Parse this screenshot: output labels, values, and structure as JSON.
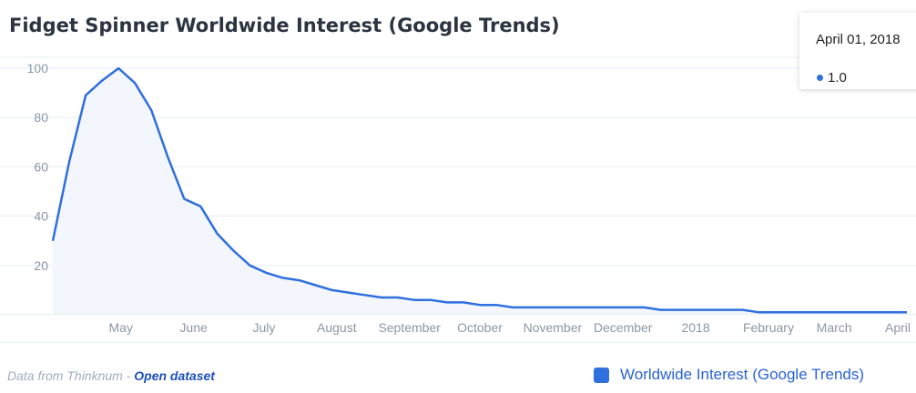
{
  "title": "Fidget Spinner Worldwide Interest (Google Trends)",
  "tooltip": {
    "date": "April 01, 2018",
    "value": "1.0"
  },
  "credit": {
    "prefix": "Data from Thinknum - ",
    "link": "Open dataset"
  },
  "colors": {
    "line": "#2f6fde",
    "area": "#f3f6fc",
    "grid": "#e6edf5"
  },
  "chart_data": {
    "type": "area",
    "title": "Fidget Spinner Worldwide Interest (Google Trends)",
    "xlabel": "",
    "ylabel": "",
    "ylim": [
      0,
      100
    ],
    "y_ticks": [
      20,
      40,
      60,
      80,
      100
    ],
    "x_ticks": [
      "May",
      "June",
      "July",
      "August",
      "September",
      "October",
      "November",
      "December",
      "2018",
      "February",
      "March",
      "April"
    ],
    "x_tick_dates": [
      "2017-05-01",
      "2017-06-01",
      "2017-07-01",
      "2017-08-01",
      "2017-09-01",
      "2017-10-01",
      "2017-11-01",
      "2017-12-01",
      "2018-01-01",
      "2018-02-01",
      "2018-03-01",
      "2018-04-01"
    ],
    "grid": true,
    "legend": "bottom-right",
    "series": [
      {
        "name": "Worldwide Interest (Google Trends)",
        "x": [
          "2017-04-02",
          "2017-04-09",
          "2017-04-16",
          "2017-04-23",
          "2017-04-30",
          "2017-05-07",
          "2017-05-14",
          "2017-05-21",
          "2017-05-28",
          "2017-06-04",
          "2017-06-11",
          "2017-06-18",
          "2017-06-25",
          "2017-07-02",
          "2017-07-09",
          "2017-07-16",
          "2017-07-23",
          "2017-07-30",
          "2017-08-06",
          "2017-08-13",
          "2017-08-20",
          "2017-08-27",
          "2017-09-03",
          "2017-09-10",
          "2017-09-17",
          "2017-09-24",
          "2017-10-01",
          "2017-10-08",
          "2017-10-15",
          "2017-10-22",
          "2017-10-29",
          "2017-11-05",
          "2017-11-12",
          "2017-11-19",
          "2017-11-26",
          "2017-12-03",
          "2017-12-10",
          "2017-12-17",
          "2017-12-24",
          "2017-12-31",
          "2018-01-07",
          "2018-01-14",
          "2018-01-21",
          "2018-01-28",
          "2018-02-04",
          "2018-02-11",
          "2018-02-18",
          "2018-02-25",
          "2018-03-04",
          "2018-03-11",
          "2018-03-18",
          "2018-03-25",
          "2018-04-01"
        ],
        "values": [
          30,
          62,
          89,
          95,
          100,
          94,
          83,
          64,
          47,
          44,
          33,
          26,
          20,
          17,
          15,
          14,
          12,
          10,
          9,
          8,
          7,
          7,
          6,
          6,
          5,
          5,
          4,
          4,
          3,
          3,
          3,
          3,
          3,
          3,
          3,
          3,
          3,
          2,
          2,
          2,
          2,
          2,
          2,
          1,
          1,
          1,
          1,
          1,
          1,
          1,
          1,
          1,
          1
        ]
      }
    ]
  }
}
